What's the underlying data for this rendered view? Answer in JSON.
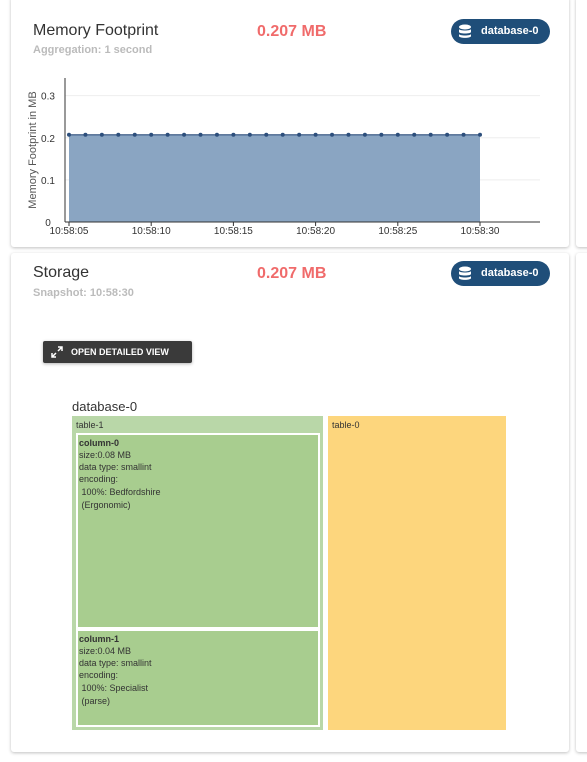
{
  "memory_card": {
    "title": "Memory Footprint",
    "subtitle": "Aggregation: 1 second",
    "value": "0.207 MB",
    "badge": "database-0",
    "chart": {
      "type": "area",
      "y_label": "Memory Footprint in MB",
      "x": [
        "10:58:05",
        "10:58:06",
        "10:58:07",
        "10:58:08",
        "10:58:09",
        "10:58:10",
        "10:58:11",
        "10:58:12",
        "10:58:13",
        "10:58:14",
        "10:58:15",
        "10:58:16",
        "10:58:17",
        "10:58:18",
        "10:58:19",
        "10:58:20",
        "10:58:21",
        "10:58:22",
        "10:58:23",
        "10:58:24",
        "10:58:25",
        "10:58:26",
        "10:58:27",
        "10:58:28",
        "10:58:29",
        "10:58:30"
      ],
      "values": [
        0.207,
        0.207,
        0.207,
        0.207,
        0.207,
        0.207,
        0.207,
        0.207,
        0.207,
        0.207,
        0.207,
        0.207,
        0.207,
        0.207,
        0.207,
        0.207,
        0.207,
        0.207,
        0.207,
        0.207,
        0.207,
        0.207,
        0.207,
        0.207,
        0.207,
        0.207
      ],
      "color": "#8aa5c2",
      "line_color": "#2d4f7c",
      "ylim": [
        0,
        0.33
      ],
      "yticks": [
        0,
        0.1,
        0.2,
        0.3
      ],
      "xticks": [
        "10:58:05",
        "10:58:10",
        "10:58:15",
        "10:58:20",
        "10:58:25",
        "10:58:30"
      ],
      "grid": true
    }
  },
  "storage_card": {
    "title": "Storage",
    "subtitle": "Snapshot: 10:58:30",
    "value": "0.207 MB",
    "badge": "database-0",
    "button": "OPEN DETAILED VIEW",
    "treemap": {
      "root": "database-0",
      "tables": [
        {
          "name": "table-1",
          "columns": [
            {
              "name": "column-0",
              "lines": [
                "size:0.08 MB",
                "data type: smallint",
                "encoding:",
                " 100%: Bedfordshire",
                " (Ergonomic)"
              ]
            },
            {
              "name": "column-1",
              "lines": [
                "size:0.04 MB",
                "data type: smallint",
                "encoding:",
                " 100%: Specialist",
                " (parse)"
              ]
            }
          ]
        },
        {
          "name": "table-0",
          "columns": []
        }
      ]
    }
  }
}
